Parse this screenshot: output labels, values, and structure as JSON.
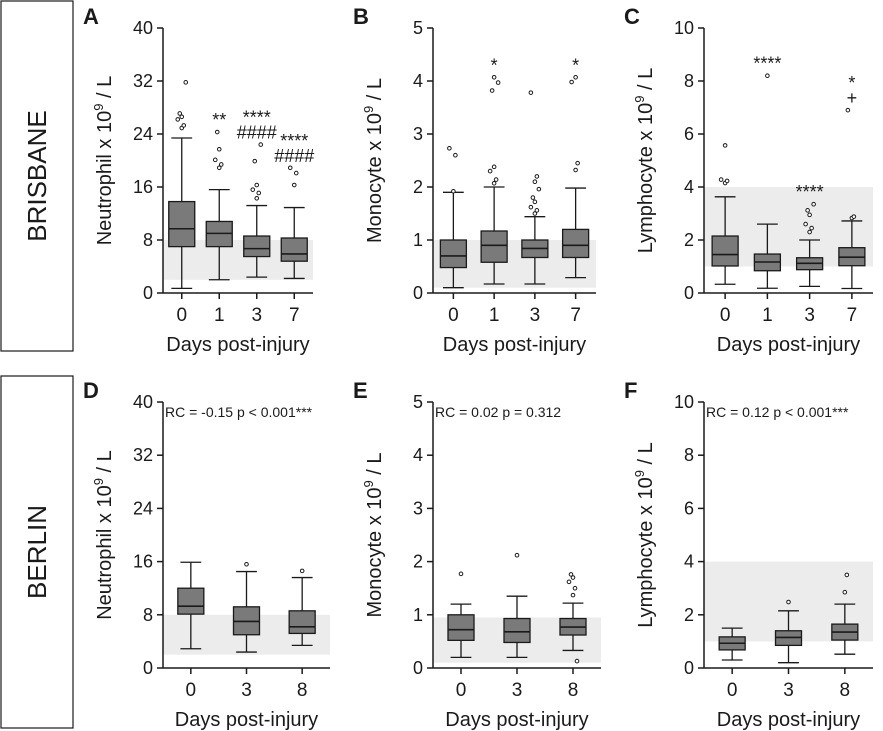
{
  "row_labels": [
    "BRISBANE",
    "BERLIN"
  ],
  "chart_data": [
    {
      "type": "box",
      "panel": "A",
      "ylabel": "Neutrophil x 10^9 / L",
      "xlabel": "Days post-injury",
      "ylim": [
        0,
        40
      ],
      "yticks": [
        "0",
        "8",
        "16",
        "24",
        "32",
        "40"
      ],
      "reference_range": [
        2,
        8
      ],
      "annotation": "",
      "categories": [
        "0",
        "1",
        "3",
        "7"
      ],
      "boxes": [
        {
          "min": 0.7,
          "q1": 7.0,
          "median": 9.7,
          "q3": 13.8,
          "max": 23.4,
          "outliers": [
            24.9,
            25.3,
            26.2,
            26.6,
            27.1,
            31.8
          ]
        },
        {
          "min": 2.0,
          "q1": 7.0,
          "median": 9.0,
          "q3": 10.8,
          "max": 15.6,
          "outliers": [
            18.9,
            19.4,
            20.1,
            21.7,
            24.3
          ]
        },
        {
          "min": 2.4,
          "q1": 5.5,
          "median": 6.7,
          "q3": 8.6,
          "max": 13.2,
          "outliers": [
            14.3,
            15.1,
            15.6,
            16.3,
            19.9,
            22.4
          ]
        },
        {
          "min": 2.2,
          "q1": 4.8,
          "median": 5.9,
          "q3": 8.3,
          "max": 12.9,
          "outliers": [
            16.3,
            18.1,
            18.9
          ]
        }
      ],
      "markers": [
        {
          "category": "1",
          "lines": [
            "**"
          ]
        },
        {
          "category": "3",
          "lines": [
            "****",
            "####"
          ]
        },
        {
          "category": "7",
          "lines": [
            "****",
            "####"
          ]
        }
      ]
    },
    {
      "type": "box",
      "panel": "B",
      "ylabel": "Monocyte x 10^9 / L",
      "xlabel": "Days post-injury",
      "ylim": [
        0,
        5
      ],
      "yticks": [
        "0",
        "1",
        "2",
        "3",
        "4",
        "5"
      ],
      "reference_range": [
        0.1,
        1.0
      ],
      "annotation": "",
      "categories": [
        "0",
        "1",
        "3",
        "7"
      ],
      "boxes": [
        {
          "min": 0.1,
          "q1": 0.48,
          "median": 0.7,
          "q3": 1.0,
          "max": 1.9,
          "outliers": [
            1.92,
            2.6,
            2.73
          ]
        },
        {
          "min": 0.17,
          "q1": 0.58,
          "median": 0.9,
          "q3": 1.17,
          "max": 2.0,
          "outliers": [
            2.07,
            2.14,
            2.3,
            2.38,
            3.82,
            3.97,
            4.07
          ]
        },
        {
          "min": 0.17,
          "q1": 0.67,
          "median": 0.84,
          "q3": 1.0,
          "max": 1.44,
          "outliers": [
            1.5,
            1.56,
            1.62,
            1.72,
            1.8,
            1.96,
            2.1,
            2.2,
            3.78
          ]
        },
        {
          "min": 0.29,
          "q1": 0.67,
          "median": 0.9,
          "q3": 1.2,
          "max": 1.98,
          "outliers": [
            2.32,
            2.45,
            3.98,
            4.07
          ]
        }
      ],
      "markers": [
        {
          "category": "1",
          "lines": [
            "*"
          ]
        },
        {
          "category": "7",
          "lines": [
            "*"
          ]
        }
      ]
    },
    {
      "type": "box",
      "panel": "C",
      "ylabel": "Lymphocyte x 10^9 / L",
      "xlabel": "Days post-injury",
      "ylim": [
        0,
        10
      ],
      "yticks": [
        "0",
        "2",
        "4",
        "6",
        "8",
        "10"
      ],
      "reference_range": [
        1.0,
        4.0
      ],
      "annotation": "",
      "categories": [
        "0",
        "1",
        "3",
        "7"
      ],
      "boxes": [
        {
          "min": 0.33,
          "q1": 1.02,
          "median": 1.45,
          "q3": 2.15,
          "max": 3.63,
          "outliers": [
            4.15,
            4.23,
            4.28,
            5.57
          ]
        },
        {
          "min": 0.18,
          "q1": 0.84,
          "median": 1.17,
          "q3": 1.47,
          "max": 2.6,
          "outliers": [
            8.2
          ]
        },
        {
          "min": 0.25,
          "q1": 0.88,
          "median": 1.12,
          "q3": 1.33,
          "max": 2.0,
          "outliers": [
            2.3,
            2.45,
            2.6,
            2.95,
            3.12,
            3.35
          ]
        },
        {
          "min": 0.17,
          "q1": 1.03,
          "median": 1.35,
          "q3": 1.71,
          "max": 2.72,
          "outliers": [
            2.83,
            2.88,
            6.9
          ]
        }
      ],
      "markers": [
        {
          "category": "1",
          "lines": [
            "****"
          ]
        },
        {
          "category": "3",
          "lines": [
            "****"
          ]
        },
        {
          "category": "7",
          "lines": [
            "*",
            "+"
          ]
        }
      ]
    },
    {
      "type": "box",
      "panel": "D",
      "ylabel": "Neutrophil x 10^9 / L",
      "xlabel": "Days post-injury",
      "ylim": [
        0,
        40
      ],
      "yticks": [
        "0",
        "8",
        "16",
        "24",
        "32",
        "40"
      ],
      "reference_range": [
        2,
        8
      ],
      "annotation": "RC = -0.15  p < 0.001***",
      "categories": [
        "0",
        "3",
        "8"
      ],
      "boxes": [
        {
          "min": 2.9,
          "q1": 8.1,
          "median": 9.3,
          "q3": 12.0,
          "max": 15.9,
          "outliers": []
        },
        {
          "min": 2.4,
          "q1": 5.0,
          "median": 7.0,
          "q3": 9.2,
          "max": 14.5,
          "outliers": [
            15.6
          ]
        },
        {
          "min": 3.4,
          "q1": 5.2,
          "median": 6.2,
          "q3": 8.6,
          "max": 13.6,
          "outliers": [
            14.6
          ]
        }
      ],
      "markers": []
    },
    {
      "type": "box",
      "panel": "E",
      "ylabel": "Monocyte x 10^9 / L",
      "xlabel": "Days post-injury",
      "ylim": [
        0,
        5
      ],
      "yticks": [
        "0",
        "1",
        "2",
        "3",
        "4",
        "5"
      ],
      "reference_range": [
        0.1,
        0.95
      ],
      "annotation": "RC = 0.02   p = 0.312",
      "categories": [
        "0",
        "3",
        "8"
      ],
      "boxes": [
        {
          "min": 0.2,
          "q1": 0.52,
          "median": 0.72,
          "q3": 1.0,
          "max": 1.2,
          "outliers": [
            1.77
          ]
        },
        {
          "min": 0.2,
          "q1": 0.48,
          "median": 0.68,
          "q3": 0.93,
          "max": 1.35,
          "outliers": [
            2.12
          ]
        },
        {
          "min": 0.33,
          "q1": 0.62,
          "median": 0.77,
          "q3": 0.93,
          "max": 1.22,
          "outliers": [
            1.37,
            1.5,
            1.62,
            1.7,
            1.76,
            0.13
          ]
        }
      ],
      "markers": []
    },
    {
      "type": "box",
      "panel": "F",
      "ylabel": "Lymphocyte x 10^9 / L",
      "xlabel": "Days post-injury",
      "ylim": [
        0,
        10
      ],
      "yticks": [
        "0",
        "2",
        "4",
        "6",
        "8",
        "10"
      ],
      "reference_range": [
        1.0,
        4.0
      ],
      "annotation": "RC = 0.12  p < 0.001***",
      "categories": [
        "0",
        "3",
        "8"
      ],
      "boxes": [
        {
          "min": 0.3,
          "q1": 0.68,
          "median": 0.93,
          "q3": 1.17,
          "max": 1.5,
          "outliers": []
        },
        {
          "min": 0.2,
          "q1": 0.85,
          "median": 1.15,
          "q3": 1.4,
          "max": 2.15,
          "outliers": [
            2.48
          ]
        },
        {
          "min": 0.52,
          "q1": 1.05,
          "median": 1.35,
          "q3": 1.65,
          "max": 2.4,
          "outliers": [
            2.85,
            3.5
          ]
        }
      ],
      "markers": []
    }
  ]
}
